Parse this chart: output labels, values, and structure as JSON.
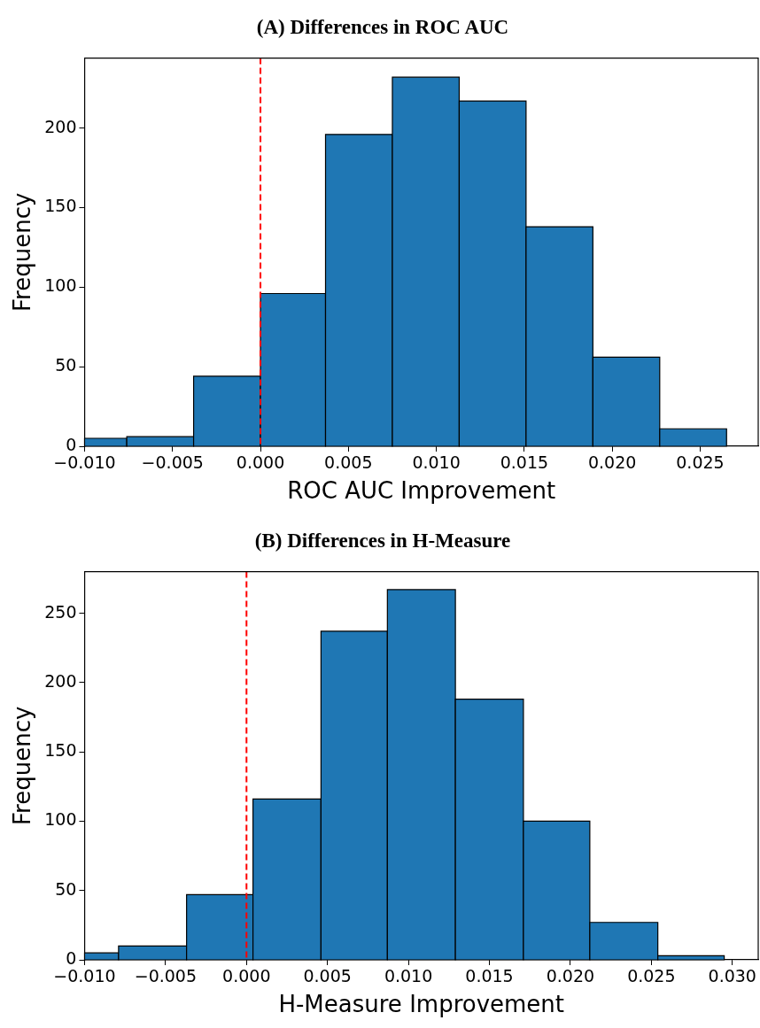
{
  "chart_data": [
    {
      "type": "histogram",
      "title": "(A) Differences in ROC AUC",
      "xlabel": "ROC AUC Improvement",
      "ylabel": "Frequency",
      "color": "#1f77b4",
      "bins": [
        -0.01,
        -0.0076,
        -0.0038,
        0.0,
        0.0037,
        0.0075,
        0.0113,
        0.0151,
        0.0189,
        0.0227,
        0.0265
      ],
      "values": [
        5,
        6,
        44,
        96,
        196,
        232,
        217,
        138,
        56,
        11
      ],
      "xlim": [
        -0.01,
        0.0283
      ],
      "xticks": [
        {
          "value": -0.01,
          "label": "−0.010"
        },
        {
          "value": -0.005,
          "label": "−0.005"
        },
        {
          "value": 0,
          "label": "0.000"
        },
        {
          "value": 0.005,
          "label": "0.005"
        },
        {
          "value": 0.01,
          "label": "0.010"
        },
        {
          "value": 0.015,
          "label": "0.015"
        },
        {
          "value": 0.02,
          "label": "0.020"
        },
        {
          "value": 0.025,
          "label": "0.025"
        }
      ],
      "ylim": [
        0,
        244
      ],
      "yticks": [
        0,
        50,
        100,
        150,
        200
      ],
      "ref_lines": [
        {
          "axis": "x",
          "value": 0,
          "color": "#ff0000",
          "line_style": "dashed"
        }
      ],
      "grid": false,
      "legend": false
    },
    {
      "type": "histogram",
      "title": "(B) Differences in H-Measure",
      "xlabel": "H-Measure Improvement",
      "ylabel": "Frequency",
      "color": "#1f77b4",
      "bins": [
        -0.01,
        -0.0079,
        -0.0037,
        0.0004,
        0.0046,
        0.0087,
        0.0129,
        0.0171,
        0.0212,
        0.0254,
        0.0295
      ],
      "values": [
        5,
        10,
        47,
        116,
        237,
        267,
        188,
        100,
        27,
        3
      ],
      "xlim": [
        -0.01,
        0.0316
      ],
      "xticks": [
        {
          "value": -0.01,
          "label": "−0.010"
        },
        {
          "value": -0.005,
          "label": "−0.005"
        },
        {
          "value": 0,
          "label": "0.000"
        },
        {
          "value": 0.005,
          "label": "0.005"
        },
        {
          "value": 0.01,
          "label": "0.010"
        },
        {
          "value": 0.015,
          "label": "0.015"
        },
        {
          "value": 0.02,
          "label": "0.020"
        },
        {
          "value": 0.025,
          "label": "0.025"
        },
        {
          "value": 0.03,
          "label": "0.030"
        }
      ],
      "ylim": [
        0,
        280
      ],
      "yticks": [
        0,
        50,
        100,
        150,
        200,
        250
      ],
      "ref_lines": [
        {
          "axis": "x",
          "value": 0,
          "color": "#ff0000",
          "line_style": "dashed"
        }
      ],
      "grid": false,
      "legend": false
    }
  ]
}
